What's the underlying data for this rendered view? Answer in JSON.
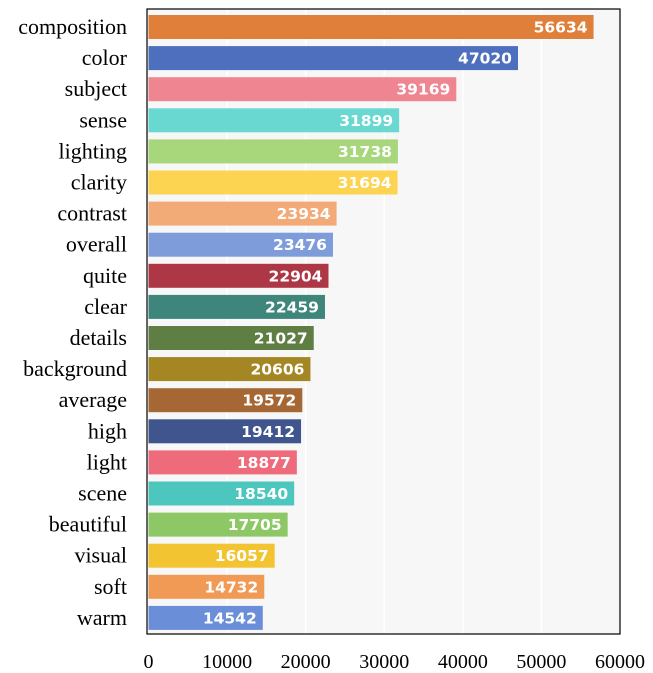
{
  "chart_data": {
    "type": "bar",
    "orientation": "horizontal",
    "categories": [
      "composition",
      "color",
      "subject",
      "sense",
      "lighting",
      "clarity",
      "contrast",
      "overall",
      "quite",
      "clear",
      "details",
      "background",
      "average",
      "high",
      "light",
      "scene",
      "beautiful",
      "visual",
      "soft",
      "warm"
    ],
    "values": [
      56634,
      47020,
      39169,
      31899,
      31738,
      31694,
      23934,
      23476,
      22904,
      22459,
      21027,
      20606,
      19572,
      19412,
      18877,
      18540,
      17705,
      16057,
      14732,
      14542
    ],
    "value_labels": [
      "56634",
      "47020",
      "39169",
      "31899",
      "31738",
      "31694",
      "23934",
      "23476",
      "22904",
      "22459",
      "21027",
      "20606",
      "19572",
      "19412",
      "18877",
      "18540",
      "17705",
      "16057",
      "14732",
      "14542"
    ],
    "colors": [
      "#DF7F39",
      "#4E6FBD",
      "#EE8591",
      "#68D8D0",
      "#A7D67B",
      "#FDD451",
      "#F2AA77",
      "#7E9CDA",
      "#AE3745",
      "#3E867B",
      "#5F7E43",
      "#A48623",
      "#A56734",
      "#40558E",
      "#EE6B7C",
      "#4DC7BE",
      "#8EC765",
      "#F2C432",
      "#F09A55",
      "#6A8FD8"
    ],
    "xlim": [
      0,
      60000
    ],
    "xticks": [
      0,
      10000,
      20000,
      30000,
      40000,
      50000,
      60000
    ],
    "xtick_labels": [
      "0",
      "10000",
      "20000",
      "30000",
      "40000",
      "50000",
      "60000"
    ],
    "grid": true,
    "title": "",
    "xlabel": "",
    "ylabel": ""
  }
}
